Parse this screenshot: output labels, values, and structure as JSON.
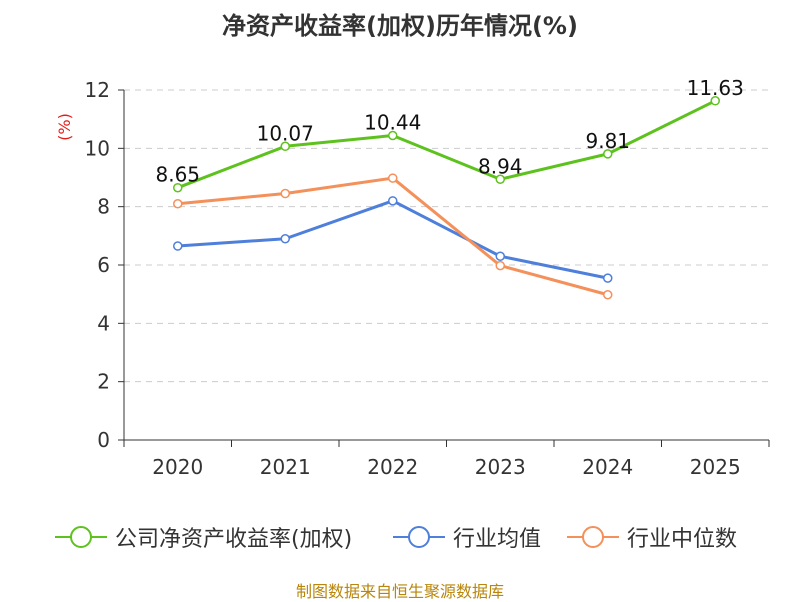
{
  "chart_data": {
    "type": "line",
    "title": "净资产收益率(加权)历年情况(%)",
    "ylabel": "(%)",
    "xlabel": "",
    "categories": [
      "2020",
      "2021",
      "2022",
      "2023",
      "2024",
      "2025"
    ],
    "ylim": [
      0,
      12
    ],
    "yticks": [
      0,
      2,
      4,
      6,
      8,
      10,
      12
    ],
    "grid": true,
    "legend_position": "bottom",
    "series": [
      {
        "name": "公司净资产收益率(加权)",
        "color": "#5ec21e",
        "values": [
          8.65,
          10.07,
          10.44,
          8.94,
          9.81,
          11.63
        ],
        "labels": [
          "8.65",
          "10.07",
          "10.44",
          "8.94",
          "9.81",
          "11.63"
        ]
      },
      {
        "name": "行业均值",
        "color": "#4e7fdb",
        "values": [
          6.65,
          6.9,
          8.2,
          6.3,
          5.55,
          null
        ]
      },
      {
        "name": "行业中位数",
        "color": "#f4905a",
        "values": [
          8.1,
          8.45,
          8.98,
          5.98,
          4.98,
          null
        ]
      }
    ],
    "source": "制图数据来自恒生聚源数据库"
  }
}
